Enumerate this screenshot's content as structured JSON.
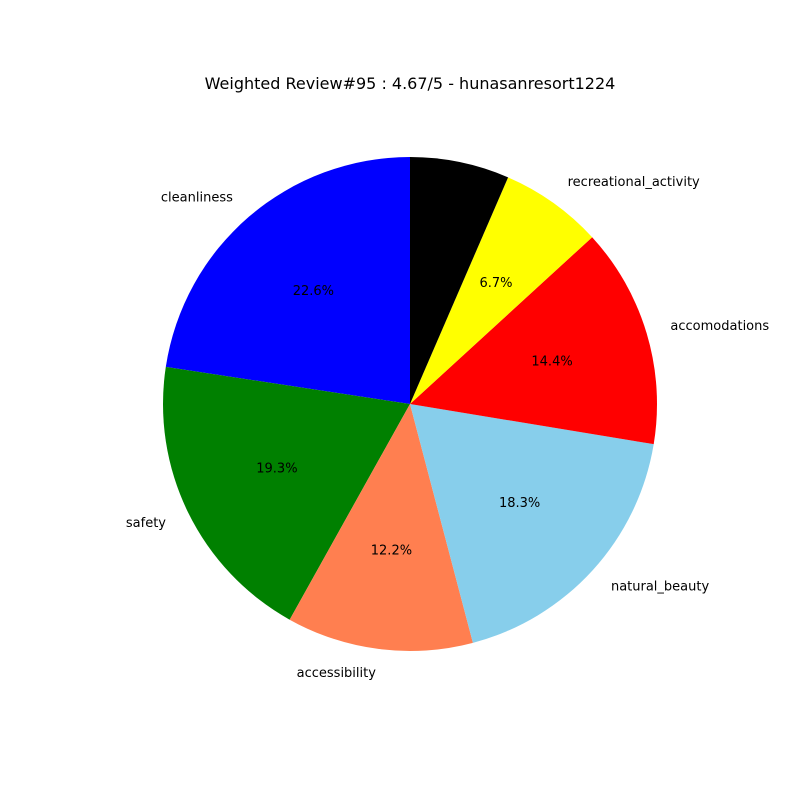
{
  "chart_data": {
    "type": "pie",
    "title": "Weighted Review#95 : 4.67/5 - hunasanresort1224",
    "start_angle_deg": 90,
    "direction": "counterclockwise",
    "slices": [
      {
        "label": "cleanliness",
        "value": 22.6,
        "pct_text": "22.6%",
        "color": "#0000ff"
      },
      {
        "label": "safety",
        "value": 19.3,
        "pct_text": "19.3%",
        "color": "#008000"
      },
      {
        "label": "accessibility",
        "value": 12.2,
        "pct_text": "12.2%",
        "color": "#ff7f50"
      },
      {
        "label": "natural_beauty",
        "value": 18.3,
        "pct_text": "18.3%",
        "color": "#87ceeb"
      },
      {
        "label": "accomodations",
        "value": 14.4,
        "pct_text": "14.4%",
        "color": "#ff0000"
      },
      {
        "label": "recreational_activity",
        "value": 6.7,
        "pct_text": "6.7%",
        "color": "#ffff00"
      },
      {
        "label": "",
        "value": 6.5,
        "pct_text": "",
        "color": "#000000"
      }
    ]
  }
}
